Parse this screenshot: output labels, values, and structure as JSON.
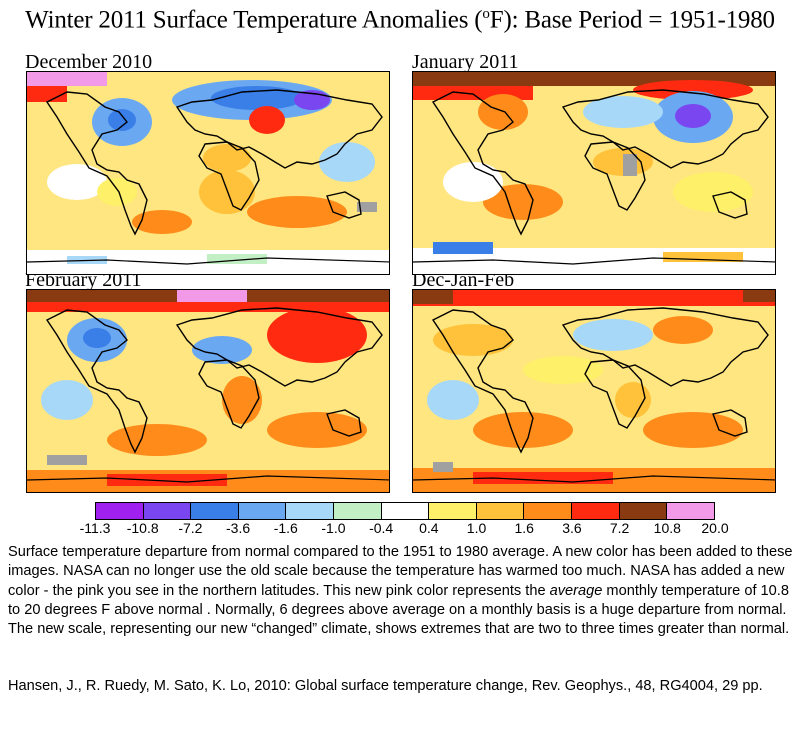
{
  "title": {
    "prefix": "Winter 2011 Surface Temperature Anomalies (",
    "degree": "o",
    "unit": "F",
    "suffix": "): Base Period = 1951-1980"
  },
  "panels": [
    {
      "label": "December 2010"
    },
    {
      "label": "January 2011"
    },
    {
      "label": "February 2011"
    },
    {
      "label": "Dec-Jan-Feb"
    }
  ],
  "legend": {
    "colors": [
      "#a020f0",
      "#7a46f0",
      "#3a7ee8",
      "#6aa8f2",
      "#a8d8f8",
      "#c2f0c4",
      "#ffffff",
      "#fff06a",
      "#ffc23a",
      "#ff8c1a",
      "#ff2a10",
      "#8a3a10",
      "#f29ae8"
    ],
    "ticks": [
      "-11.3",
      "-10.8",
      "-7.2",
      "-3.6",
      "-1.6",
      "-1.0",
      "-0.4",
      "0.4",
      "1.0",
      "1.6",
      "3.6",
      "7.2",
      "10.8",
      "20.0"
    ]
  },
  "caption": {
    "part1": "Surface temperature departure from normal compared to the 1951 to 1980 average. A new color has been added to these images. NASA can no longer use the old scale because the temperature has warmed too much. NASA has added a new color - the pink you see in the northern latitudes. This new pink color represents the ",
    "emphasis": "average",
    "part2": " monthly temperature of 10.8 to 20 degrees F above normal . Normally, 6 degrees above average on a monthly basis is a huge departure from normal. The new scale, representing our new “changed” climate, shows extremes that are two to three times greater than normal."
  },
  "citation": "Hansen, J., R. Ruedy, M. Sato, K. Lo, 2010: Global surface temperature change, Rev. Geophys., 48, RG4004, 29 pp."
}
